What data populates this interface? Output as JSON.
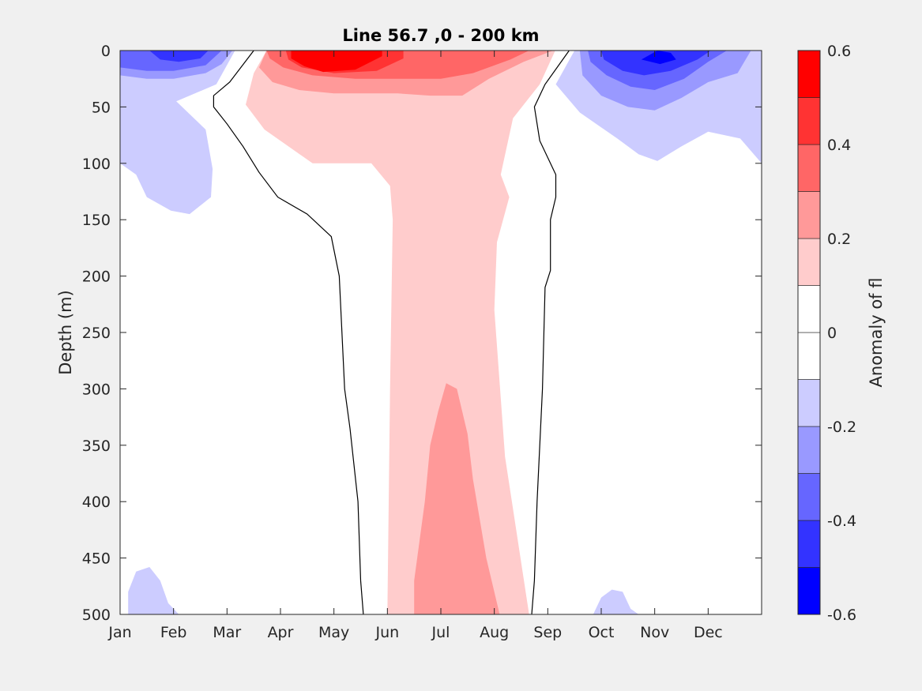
{
  "chart_data": {
    "type": "heatmap",
    "subtype": "filled-contour",
    "title": "Line 56.7 ,0 - 200 km",
    "ylabel": "Depth (m)",
    "colorbar_label": "Anomaly of fl",
    "x_unit": "month",
    "xlim": [
      0,
      12
    ],
    "ylim": [
      0,
      500
    ],
    "y_reversed": true,
    "x_ticks": [
      0,
      1,
      2,
      3,
      4,
      5,
      6,
      7,
      8,
      9,
      10,
      11
    ],
    "x_tick_labels": [
      "Jan",
      "Feb",
      "Mar",
      "Apr",
      "May",
      "Jun",
      "Jul",
      "Aug",
      "Sep",
      "Oct",
      "Nov",
      "Dec"
    ],
    "y_ticks": [
      0,
      50,
      100,
      150,
      200,
      250,
      300,
      350,
      400,
      450,
      500
    ],
    "y_tick_labels": [
      "0",
      "50",
      "100",
      "150",
      "200",
      "250",
      "300",
      "350",
      "400",
      "450",
      "500"
    ],
    "colorbar": {
      "levels": [
        -0.6,
        -0.5,
        -0.4,
        -0.3,
        -0.2,
        -0.1,
        0,
        0.1,
        0.2,
        0.3,
        0.4,
        0.5,
        0.6
      ],
      "tick_values": [
        -0.6,
        -0.4,
        -0.2,
        0,
        0.2,
        0.4,
        0.6
      ],
      "tick_labels": [
        "-0.6",
        "-0.4",
        "-0.2",
        "0",
        "0.2",
        "0.4",
        "0.6"
      ],
      "colors": [
        "#0000ff",
        "#3333ff",
        "#6666ff",
        "#9999ff",
        "#ccccff",
        "#ffffff",
        "#ffffff",
        "#ffcccc",
        "#ff9999",
        "#ff6666",
        "#ff3333",
        "#ff0000"
      ]
    },
    "regions": [
      {
        "level": 0.1,
        "color": "#ffcccc",
        "points": [
          [
            2.74,
            0
          ],
          [
            8.14,
            0
          ],
          [
            7.85,
            30
          ],
          [
            7.35,
            60
          ],
          [
            7.12,
            110
          ],
          [
            7.28,
            130
          ],
          [
            7.05,
            170
          ],
          [
            7.0,
            230
          ],
          [
            7.2,
            360
          ],
          [
            7.65,
            500
          ],
          [
            5.0,
            500
          ],
          [
            5.05,
            300
          ],
          [
            5.1,
            150
          ],
          [
            5.05,
            120
          ],
          [
            4.7,
            100
          ],
          [
            3.6,
            100
          ],
          [
            2.7,
            70
          ],
          [
            2.35,
            48
          ],
          [
            2.5,
            20
          ]
        ]
      },
      {
        "level": 0.2,
        "color": "#ff9999",
        "points": [
          [
            2.74,
            0
          ],
          [
            8.1,
            0
          ],
          [
            7.55,
            10
          ],
          [
            6.9,
            25
          ],
          [
            6.4,
            40
          ],
          [
            5.8,
            40
          ],
          [
            5.2,
            38
          ],
          [
            4.6,
            38
          ],
          [
            4.0,
            38
          ],
          [
            3.35,
            35
          ],
          [
            2.85,
            28
          ],
          [
            2.6,
            15
          ]
        ]
      },
      {
        "level": 0.2,
        "color": "#ff9999",
        "points": [
          [
            5.5,
            500
          ],
          [
            5.5,
            470
          ],
          [
            5.7,
            400
          ],
          [
            5.8,
            350
          ],
          [
            5.95,
            320
          ],
          [
            6.1,
            295
          ],
          [
            6.3,
            300
          ],
          [
            6.5,
            340
          ],
          [
            6.6,
            380
          ],
          [
            6.85,
            450
          ],
          [
            7.1,
            500
          ]
        ]
      },
      {
        "level": 0.3,
        "color": "#ff6666",
        "points": [
          [
            2.74,
            0
          ],
          [
            7.65,
            0
          ],
          [
            7.3,
            8
          ],
          [
            6.6,
            20
          ],
          [
            6.0,
            25
          ],
          [
            5.2,
            25
          ],
          [
            4.4,
            25
          ],
          [
            3.6,
            22
          ],
          [
            3.05,
            15
          ],
          [
            2.8,
            7
          ]
        ]
      },
      {
        "level": 0.4,
        "color": "#ff3333",
        "points": [
          [
            3.1,
            0
          ],
          [
            5.3,
            0
          ],
          [
            5.3,
            7
          ],
          [
            4.8,
            18
          ],
          [
            4.0,
            20
          ],
          [
            3.4,
            15
          ],
          [
            3.15,
            8
          ]
        ]
      },
      {
        "level": 0.5,
        "color": "#ff0000",
        "points": [
          [
            3.2,
            0
          ],
          [
            4.9,
            0
          ],
          [
            4.9,
            5
          ],
          [
            4.4,
            17
          ],
          [
            3.8,
            19
          ],
          [
            3.45,
            14
          ],
          [
            3.2,
            7
          ]
        ]
      },
      {
        "level": -0.1,
        "color": "#ccccff",
        "points": [
          [
            0,
            0
          ],
          [
            2.15,
            0
          ],
          [
            1.8,
            30
          ],
          [
            1.05,
            45
          ],
          [
            1.6,
            70
          ],
          [
            1.73,
            105
          ],
          [
            1.7,
            130
          ],
          [
            1.3,
            145
          ],
          [
            0.95,
            142
          ],
          [
            0.5,
            130
          ],
          [
            0.3,
            110
          ],
          [
            0,
            100
          ]
        ]
      },
      {
        "level": -0.2,
        "color": "#9999ff",
        "points": [
          [
            0,
            0
          ],
          [
            2.1,
            0
          ],
          [
            1.9,
            12
          ],
          [
            1.6,
            20
          ],
          [
            1.0,
            25
          ],
          [
            0.5,
            25
          ],
          [
            0,
            22
          ]
        ]
      },
      {
        "level": -0.3,
        "color": "#6666ff",
        "points": [
          [
            0,
            0
          ],
          [
            1.9,
            0
          ],
          [
            1.6,
            13
          ],
          [
            1.0,
            18
          ],
          [
            0.5,
            18
          ],
          [
            0,
            15
          ]
        ]
      },
      {
        "level": -0.4,
        "color": "#3333ff",
        "points": [
          [
            0.55,
            0
          ],
          [
            1.65,
            0
          ],
          [
            1.5,
            7
          ],
          [
            1.1,
            10
          ],
          [
            0.75,
            8
          ]
        ]
      },
      {
        "level": -0.1,
        "color": "#ccccff",
        "points": [
          [
            8.5,
            0
          ],
          [
            12,
            0
          ],
          [
            12,
            100
          ],
          [
            11.6,
            78
          ],
          [
            11.0,
            72
          ],
          [
            10.5,
            85
          ],
          [
            10.05,
            98
          ],
          [
            9.7,
            92
          ],
          [
            9.3,
            78
          ],
          [
            8.6,
            55
          ],
          [
            8.15,
            30
          ]
        ]
      },
      {
        "level": -0.2,
        "color": "#9999ff",
        "points": [
          [
            8.6,
            0
          ],
          [
            11.8,
            0
          ],
          [
            11.55,
            20
          ],
          [
            11.0,
            28
          ],
          [
            10.5,
            42
          ],
          [
            10.0,
            53
          ],
          [
            9.5,
            50
          ],
          [
            9.0,
            40
          ],
          [
            8.65,
            22
          ]
        ]
      },
      {
        "level": -0.3,
        "color": "#6666ff",
        "points": [
          [
            8.75,
            0
          ],
          [
            11.35,
            0
          ],
          [
            11.0,
            10
          ],
          [
            10.55,
            25
          ],
          [
            10.0,
            35
          ],
          [
            9.55,
            32
          ],
          [
            9.1,
            22
          ],
          [
            8.8,
            10
          ]
        ]
      },
      {
        "level": -0.4,
        "color": "#3333ff",
        "points": [
          [
            9.0,
            0
          ],
          [
            11.05,
            0
          ],
          [
            10.8,
            8
          ],
          [
            10.3,
            18
          ],
          [
            9.8,
            22
          ],
          [
            9.4,
            18
          ],
          [
            9.05,
            8
          ]
        ]
      },
      {
        "level": -0.5,
        "color": "#0000ff",
        "points": [
          [
            9.75,
            8
          ],
          [
            10.05,
            0
          ],
          [
            10.3,
            2
          ],
          [
            10.4,
            8
          ],
          [
            10.1,
            12
          ]
        ]
      },
      {
        "level": -0.1,
        "color": "#ccccff",
        "points": [
          [
            0.15,
            500
          ],
          [
            0.15,
            480
          ],
          [
            0.3,
            462
          ],
          [
            0.55,
            458
          ],
          [
            0.75,
            470
          ],
          [
            0.9,
            490
          ],
          [
            1.1,
            500
          ]
        ]
      },
      {
        "level": -0.1,
        "color": "#ccccff",
        "points": [
          [
            8.85,
            500
          ],
          [
            9.0,
            485
          ],
          [
            9.2,
            478
          ],
          [
            9.4,
            480
          ],
          [
            9.55,
            495
          ],
          [
            9.7,
            500
          ]
        ]
      }
    ],
    "contour_lines": [
      {
        "level": 0,
        "points": [
          [
            2.5,
            0
          ],
          [
            2.05,
            28
          ],
          [
            1.75,
            40
          ],
          [
            1.75,
            50
          ],
          [
            2.0,
            65
          ],
          [
            2.3,
            85
          ],
          [
            2.6,
            108
          ],
          [
            2.95,
            130
          ],
          [
            3.5,
            145
          ],
          [
            3.95,
            165
          ],
          [
            4.1,
            200
          ],
          [
            4.2,
            300
          ],
          [
            4.3,
            335
          ],
          [
            4.45,
            400
          ],
          [
            4.5,
            470
          ],
          [
            4.55,
            500
          ]
        ]
      },
      {
        "level": 0,
        "points": [
          [
            8.4,
            0
          ],
          [
            7.95,
            30
          ],
          [
            7.75,
            50
          ],
          [
            7.85,
            80
          ],
          [
            8.15,
            110
          ],
          [
            8.15,
            130
          ],
          [
            8.05,
            150
          ],
          [
            8.05,
            195
          ],
          [
            7.95,
            210
          ],
          [
            7.9,
            300
          ],
          [
            7.8,
            400
          ],
          [
            7.75,
            470
          ],
          [
            7.7,
            500
          ]
        ]
      }
    ]
  }
}
